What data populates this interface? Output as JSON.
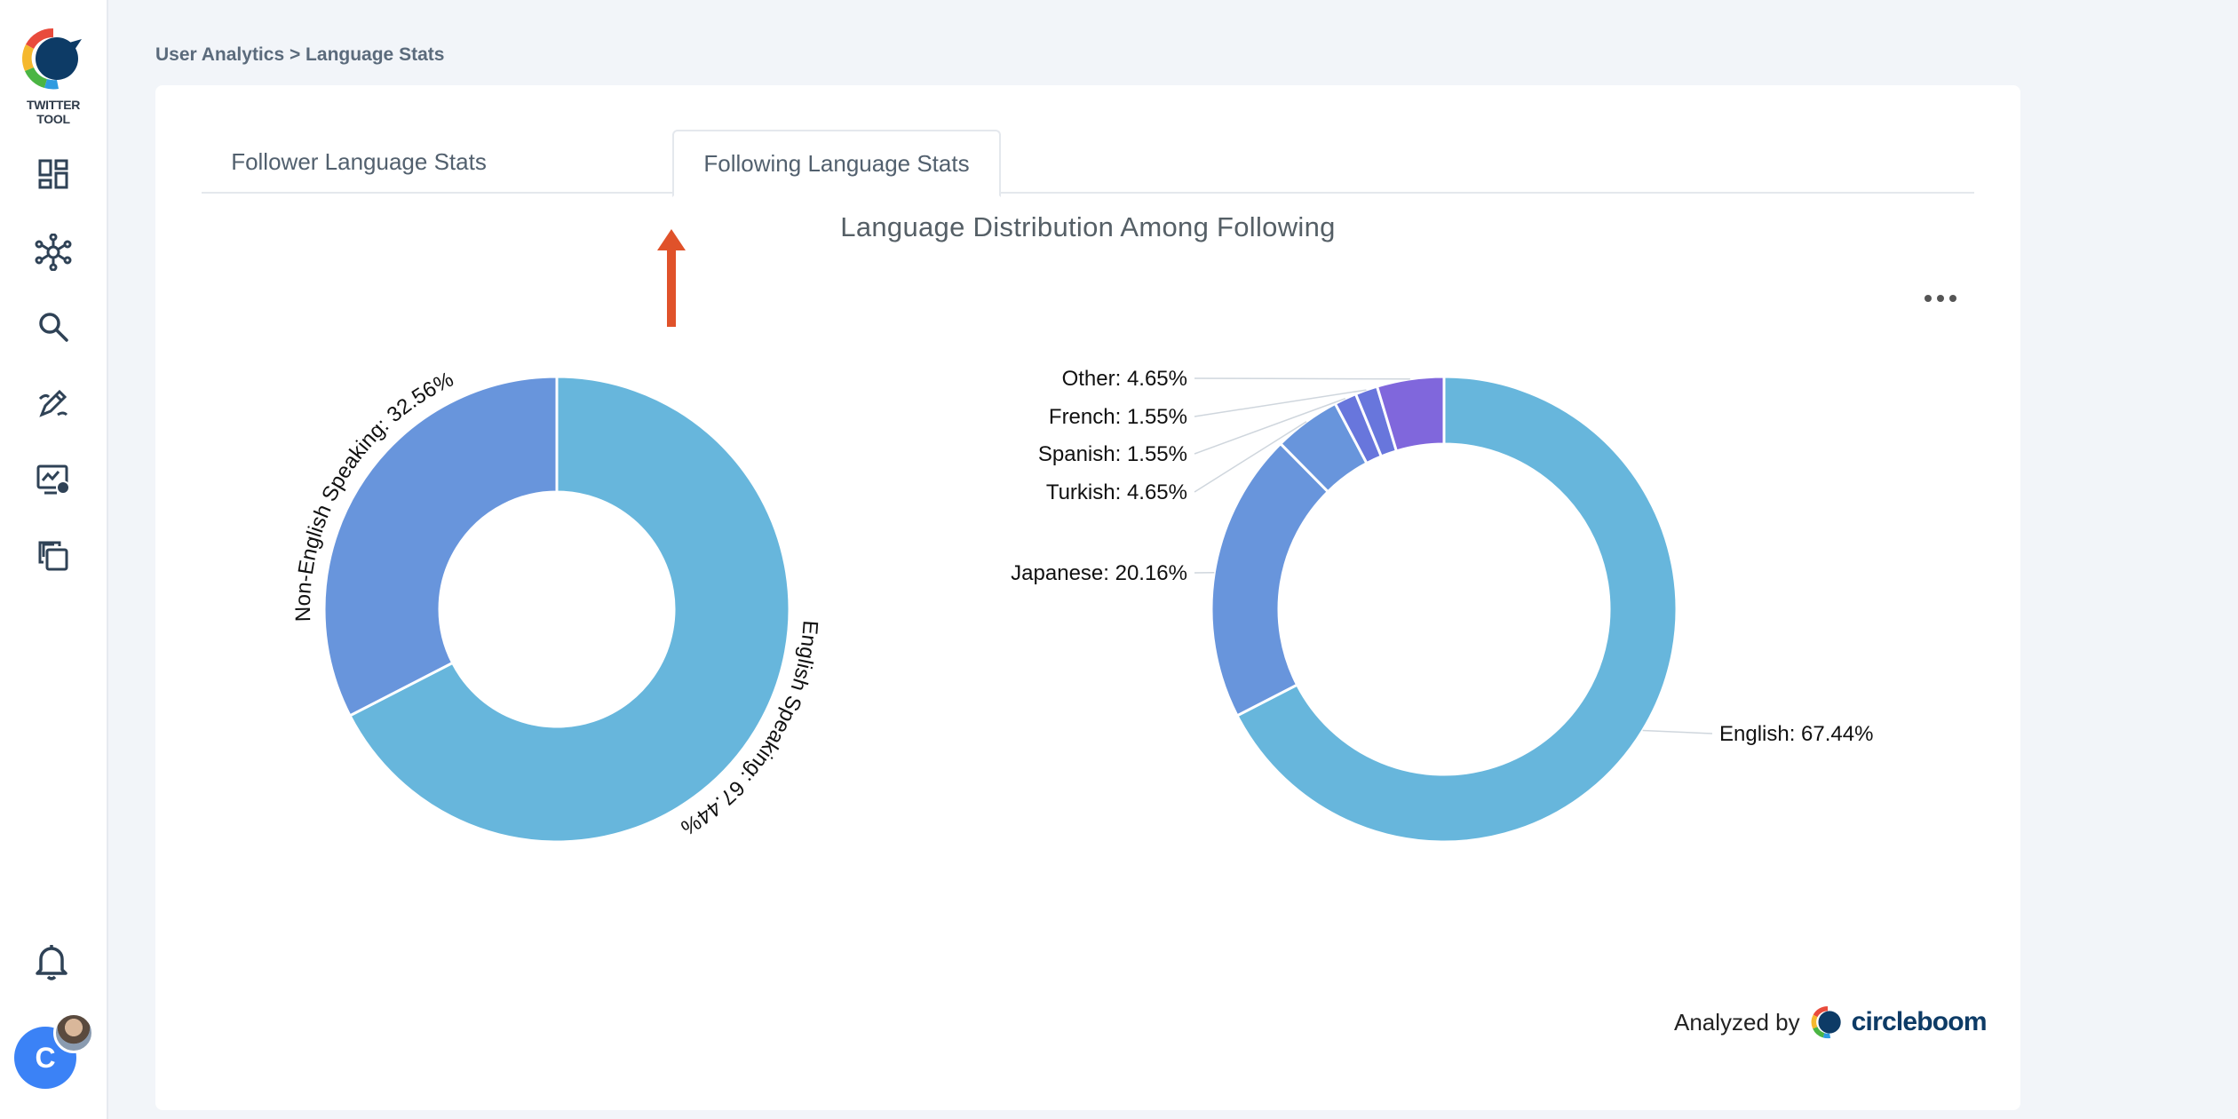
{
  "app": {
    "logo_text": "TWITTER TOOL"
  },
  "sidebar": {
    "items": [
      {
        "icon": "dashboard-icon"
      },
      {
        "icon": "network-icon"
      },
      {
        "icon": "search-icon"
      },
      {
        "icon": "compose-icon"
      },
      {
        "icon": "analytics-icon"
      },
      {
        "icon": "copy-icon"
      }
    ],
    "bell_icon": "bell-icon",
    "avatar_letter": "C"
  },
  "breadcrumb": "User Analytics > Language Stats",
  "tabs": [
    {
      "label": "Follower Language Stats",
      "active": false
    },
    {
      "label": "Following Language Stats",
      "active": true
    }
  ],
  "chart_title": "Language Distribution Among Following",
  "footer": {
    "analyzed_by": "Analyzed by",
    "brand": "circleboom"
  },
  "colors": {
    "light_blue": "#67b6dc",
    "mid_blue": "#6895dc",
    "purple": "#8067dc",
    "arrow": "#e0522a"
  },
  "chart_data": [
    {
      "type": "pie",
      "donut": true,
      "slices": [
        {
          "label": "English Speaking",
          "value": 67.44,
          "color": "#67b6dc"
        },
        {
          "label": "Non-English Speaking",
          "value": 32.56,
          "color": "#6895dc"
        }
      ],
      "labels": [
        "English Speaking: 67.44%",
        "Non-English Speaking: 32.56%"
      ]
    },
    {
      "type": "pie",
      "donut": true,
      "slices": [
        {
          "label": "English",
          "value": 67.44,
          "color": "#67b6dc"
        },
        {
          "label": "Japanese",
          "value": 20.16,
          "color": "#6895dc"
        },
        {
          "label": "Turkish",
          "value": 4.65,
          "color": "#6895dc"
        },
        {
          "label": "Spanish",
          "value": 1.55,
          "color": "#6876dc"
        },
        {
          "label": "French",
          "value": 1.55,
          "color": "#6876dc"
        },
        {
          "label": "Other",
          "value": 4.65,
          "color": "#8067dc"
        }
      ],
      "labels": [
        "English: 67.44%",
        "Japanese: 20.16%",
        "Turkish: 4.65%",
        "Spanish: 1.55%",
        "French: 1.55%",
        "Other: 4.65%"
      ]
    }
  ]
}
